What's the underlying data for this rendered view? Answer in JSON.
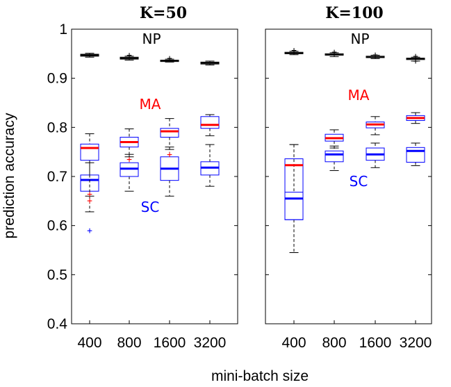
{
  "chart_data": {
    "type": "box",
    "ylabel": "prediction accuracy",
    "xlabel": "mini-batch size",
    "ylim": [
      0.4,
      1.0
    ],
    "yticks": [
      "0.4",
      "0.5",
      "0.6",
      "0.7",
      "0.8",
      "0.9",
      "1"
    ],
    "categories": [
      "400",
      "800",
      "1600",
      "3200"
    ],
    "colors": {
      "NP": "#000000",
      "MA": "#ff0000",
      "SC": "#0000ff"
    },
    "panels": [
      {
        "title": "K=50",
        "annotations": {
          "NP": "NP",
          "MA": "MA",
          "SC": "SC"
        },
        "series": {
          "NP": [
            {
              "q1": 0.945,
              "median": 0.947,
              "q3": 0.949,
              "wlo": 0.943,
              "whi": 0.951,
              "outliers": []
            },
            {
              "q1": 0.939,
              "median": 0.941,
              "q3": 0.943,
              "wlo": 0.937,
              "whi": 0.945,
              "outliers": [
                0.948
              ]
            },
            {
              "q1": 0.934,
              "median": 0.936,
              "q3": 0.937,
              "wlo": 0.933,
              "whi": 0.939,
              "outliers": [
                0.942
              ]
            },
            {
              "q1": 0.929,
              "median": 0.931,
              "q3": 0.933,
              "wlo": 0.927,
              "whi": 0.935,
              "outliers": []
            }
          ],
          "MA": [
            {
              "q1": 0.733,
              "median": 0.758,
              "q3": 0.766,
              "wlo": 0.66,
              "whi": 0.787,
              "outliers": [
                0.652,
                0.665
              ]
            },
            {
              "q1": 0.76,
              "median": 0.77,
              "q3": 0.78,
              "wlo": 0.74,
              "whi": 0.797,
              "outliers": [
                0.736
              ]
            },
            {
              "q1": 0.78,
              "median": 0.792,
              "q3": 0.798,
              "wlo": 0.755,
              "whi": 0.818,
              "outliers": [
                0.746
              ]
            },
            {
              "q1": 0.798,
              "median": 0.805,
              "q3": 0.822,
              "wlo": 0.783,
              "whi": 0.826,
              "outliers": []
            }
          ],
          "SC": [
            {
              "q1": 0.67,
              "median": 0.693,
              "q3": 0.703,
              "wlo": 0.628,
              "whi": 0.728,
              "outliers": [
                0.591
              ]
            },
            {
              "q1": 0.7,
              "median": 0.716,
              "q3": 0.728,
              "wlo": 0.67,
              "whi": 0.745,
              "outliers": []
            },
            {
              "q1": 0.692,
              "median": 0.716,
              "q3": 0.74,
              "wlo": 0.66,
              "whi": 0.76,
              "outliers": []
            },
            {
              "q1": 0.703,
              "median": 0.718,
              "q3": 0.73,
              "wlo": 0.68,
              "whi": 0.765,
              "outliers": []
            }
          ]
        }
      },
      {
        "title": "K=100",
        "annotations": {
          "NP": "NP",
          "MA": "MA",
          "SC": "SC"
        },
        "series": {
          "NP": [
            {
              "q1": 0.95,
              "median": 0.951,
              "q3": 0.953,
              "wlo": 0.948,
              "whi": 0.955,
              "outliers": [
                0.958
              ]
            },
            {
              "q1": 0.947,
              "median": 0.948,
              "q3": 0.95,
              "wlo": 0.944,
              "whi": 0.952,
              "outliers": [
                0.955
              ]
            },
            {
              "q1": 0.942,
              "median": 0.943,
              "q3": 0.945,
              "wlo": 0.94,
              "whi": 0.947,
              "outliers": [
                0.949
              ]
            },
            {
              "q1": 0.938,
              "median": 0.94,
              "q3": 0.941,
              "wlo": 0.935,
              "whi": 0.943,
              "outliers": [
                0.946,
                0.936
              ]
            }
          ],
          "MA": [
            {
              "q1": 0.612,
              "median": 0.723,
              "q3": 0.736,
              "wlo": 0.545,
              "whi": 0.765,
              "outliers": []
            },
            {
              "q1": 0.772,
              "median": 0.778,
              "q3": 0.786,
              "wlo": 0.758,
              "whi": 0.795,
              "outliers": []
            },
            {
              "q1": 0.799,
              "median": 0.806,
              "q3": 0.811,
              "wlo": 0.785,
              "whi": 0.822,
              "outliers": []
            },
            {
              "q1": 0.814,
              "median": 0.819,
              "q3": 0.824,
              "wlo": 0.808,
              "whi": 0.83,
              "outliers": []
            }
          ],
          "SC": [
            {
              "q1": 0.612,
              "median": 0.655,
              "q3": 0.668,
              "wlo": 0.545,
              "whi": 0.765,
              "outliers": []
            },
            {
              "q1": 0.73,
              "median": 0.745,
              "q3": 0.752,
              "wlo": 0.712,
              "whi": 0.762,
              "outliers": []
            },
            {
              "q1": 0.733,
              "median": 0.745,
              "q3": 0.758,
              "wlo": 0.718,
              "whi": 0.768,
              "outliers": []
            },
            {
              "q1": 0.729,
              "median": 0.752,
              "q3": 0.759,
              "wlo": 0.722,
              "whi": 0.768,
              "outliers": []
            }
          ]
        }
      }
    ]
  }
}
